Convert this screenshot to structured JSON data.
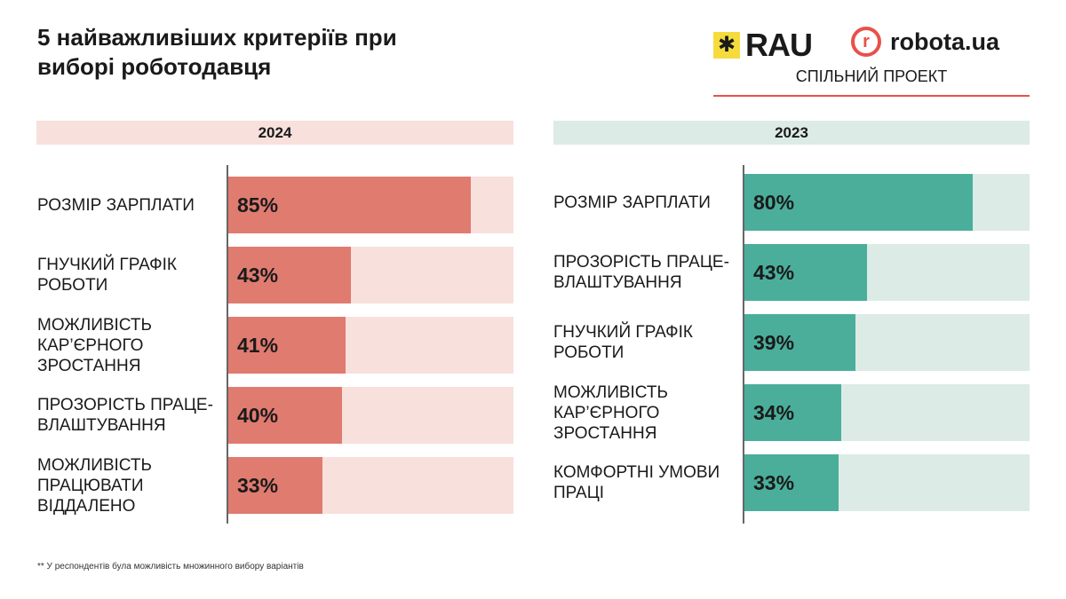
{
  "title": "5 найважливіших критеріїв при виборі роботодавця",
  "logos": {
    "rau": "RAU",
    "robota": "robota.ua",
    "robota_mark": "r",
    "joint": "СПІЛЬНИЙ ПРОЕКТ"
  },
  "footnote": "** У респондентів була можливість множинного вибору варіантів",
  "chart_data": [
    {
      "type": "bar",
      "orientation": "horizontal",
      "title": "2024",
      "xlim": [
        0,
        100
      ],
      "categories": [
        "РОЗМІР ЗАРПЛАТИ",
        "ГНУЧКИЙ ГРАФІК РОБОТИ",
        "МОЖЛИВІСТЬ КАР’ЄРНОГО ЗРОСТАННЯ",
        "ПРОЗОРІСТЬ ПРАЦЕ-ВЛАШТУВАННЯ",
        "МОЖЛИВІСТЬ ПРАЦЮВАТИ ВІДДАЛЕНО"
      ],
      "values": [
        85,
        43,
        41,
        40,
        33
      ],
      "labels": [
        "85%",
        "43%",
        "41%",
        "40%",
        "33%"
      ],
      "color": "#e07b70",
      "track_color": "#f8e0dc"
    },
    {
      "type": "bar",
      "orientation": "horizontal",
      "title": "2023",
      "xlim": [
        0,
        100
      ],
      "categories": [
        "РОЗМІР ЗАРПЛАТИ",
        "ПРОЗОРІСТЬ ПРАЦЕ-ВЛАШТУВАННЯ",
        "ГНУЧКИЙ ГРАФІК РОБОТИ",
        "МОЖЛИВІСТЬ КАР’ЄРНОГО ЗРОСТАННЯ",
        "КОМФОРТНІ УМОВИ ПРАЦІ"
      ],
      "values": [
        80,
        43,
        39,
        34,
        33
      ],
      "labels": [
        "80%",
        "43%",
        "39%",
        "34%",
        "33%"
      ],
      "color": "#4aae9b",
      "track_color": "#dcebe6"
    }
  ]
}
